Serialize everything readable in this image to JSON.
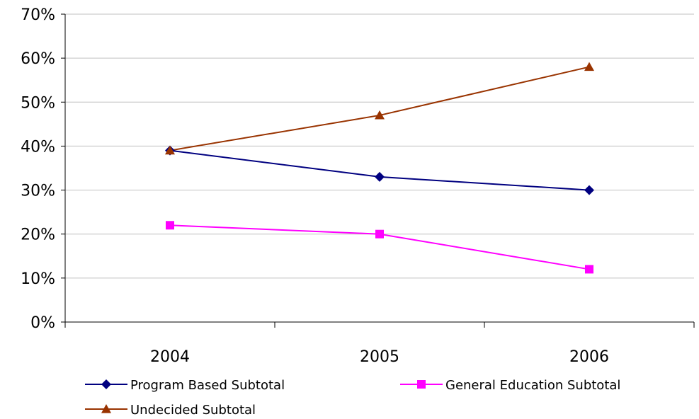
{
  "chart_data": {
    "type": "line",
    "categories": [
      "2004",
      "2005",
      "2006"
    ],
    "series": [
      {
        "name": "Program Based Subtotal",
        "values": [
          0.39,
          0.33,
          0.3
        ],
        "color": "#000080",
        "marker": "diamond"
      },
      {
        "name": "General Education Subtotal",
        "values": [
          0.22,
          0.2,
          0.12
        ],
        "color": "#ff00ff",
        "marker": "square"
      },
      {
        "name": "Undecided Subtotal",
        "values": [
          0.39,
          0.47,
          0.58
        ],
        "color": "#993300",
        "marker": "triangle"
      }
    ],
    "yticks": [
      "0%",
      "10%",
      "20%",
      "30%",
      "40%",
      "50%",
      "60%",
      "70%"
    ],
    "ylim": [
      0,
      0.7
    ],
    "grid": true,
    "legend": "bottom"
  }
}
